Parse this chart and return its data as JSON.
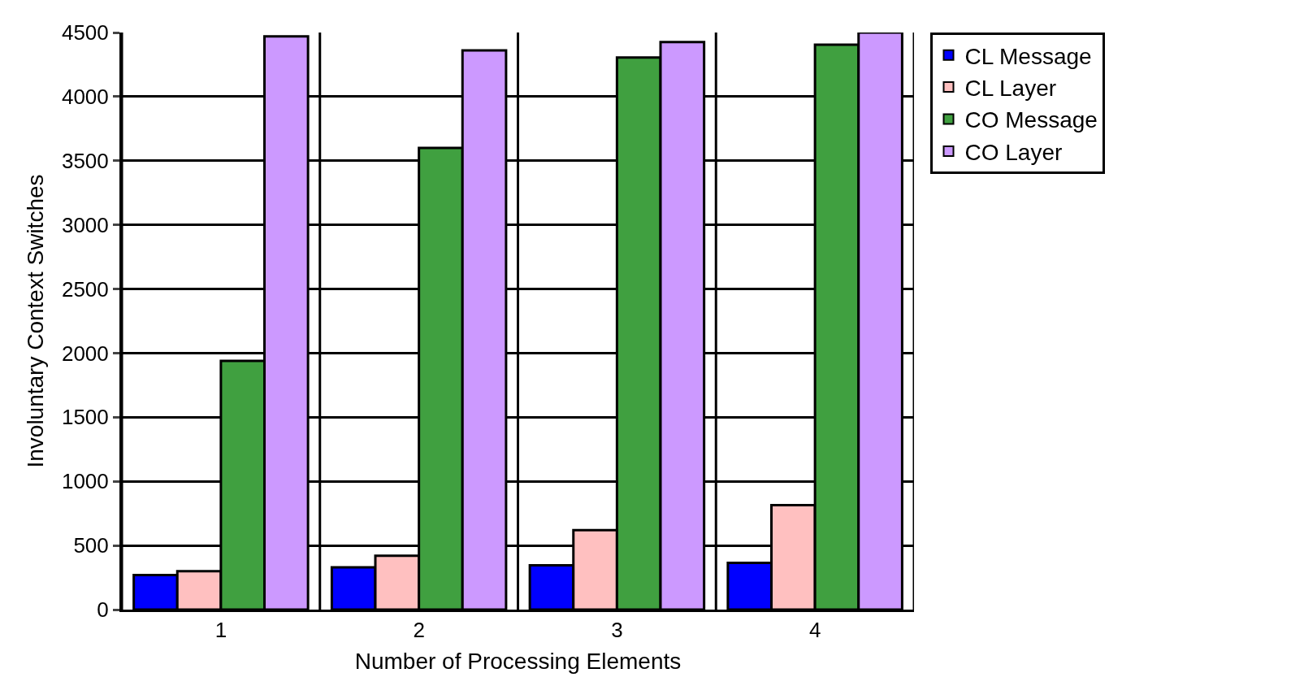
{
  "chart_data": {
    "type": "bar",
    "xlabel": "Number of Processing Elements",
    "ylabel": "Involuntary Context Switches",
    "categories": [
      "1",
      "2",
      "3",
      "4"
    ],
    "series": [
      {
        "name": "CL Message",
        "color": "#0000ff",
        "values": [
          270,
          330,
          345,
          365
        ]
      },
      {
        "name": "CL Layer",
        "color": "#ffc0c0",
        "values": [
          300,
          420,
          620,
          815
        ]
      },
      {
        "name": "CO Message",
        "color": "#40a040",
        "values": [
          1940,
          3600,
          4305,
          4405
        ]
      },
      {
        "name": "CO Layer",
        "color": "#cc99ff",
        "values": [
          4470,
          4360,
          4425,
          4500
        ]
      }
    ],
    "ylim": [
      0,
      4500
    ],
    "yticks": [
      0,
      500,
      1000,
      1500,
      2000,
      2500,
      3000,
      3500,
      4000,
      4500
    ],
    "grid": true,
    "legend": "top right"
  }
}
